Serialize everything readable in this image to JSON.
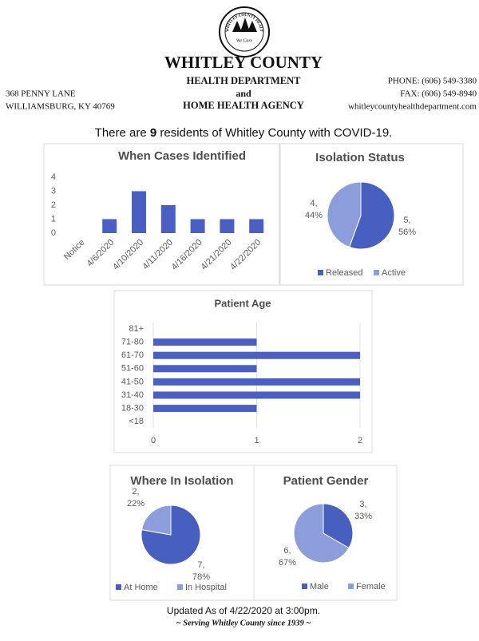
{
  "header": {
    "logo_ring": "WHITLEY COUNTY HEALTH DEPARTMENT",
    "logo_text": "We Care",
    "title": "WHITLEY COUNTY",
    "line1": "HEALTH DEPARTMENT",
    "line2": "and",
    "line3": "HOME HEALTH AGENCY",
    "address1": "368 PENNY LANE",
    "address2": "WILLIAMSBURG, KY 40769",
    "phone": "PHONE: (606) 549-3380",
    "fax": "FAX: (606) 549-8940",
    "website": "whitleycountyhealthdepartment.com"
  },
  "intro": {
    "prefix": "There are",
    "count": 9,
    "suffix": "residents of Whitley County with COVID-19."
  },
  "chart_data": [
    {
      "type": "bar",
      "title": "When Cases Identified",
      "categories": [
        "Notice",
        "4/6/2020",
        "4/10/2020",
        "4/11/2020",
        "4/16/2020",
        "4/21/2020",
        "4/22/2020"
      ],
      "values": [
        0,
        1,
        3,
        2,
        1,
        1,
        1
      ],
      "color": "#4a5fc1",
      "ylim": [
        0,
        4
      ],
      "yticks": [
        0,
        1,
        2,
        3,
        4
      ],
      "grid": false
    },
    {
      "type": "pie",
      "title": "Isolation Status",
      "categories": [
        "Released",
        "Active"
      ],
      "values": [
        5,
        4
      ],
      "value_labels": [
        [
          "5,",
          "56%"
        ],
        [
          "4,",
          "44%"
        ]
      ],
      "colors": [
        "#4760bf",
        "#8c9ddb"
      ],
      "legend": "bottom"
    },
    {
      "type": "bar",
      "orientation": "horizontal",
      "title": "Patient Age",
      "categories": [
        "<18",
        "18-30",
        "31-40",
        "41-50",
        "51-60",
        "61-70",
        "71-80",
        "81+"
      ],
      "values": [
        0,
        1,
        2,
        2,
        1,
        2,
        1,
        0
      ],
      "color": "#4a5fc1",
      "xlim": [
        0,
        2
      ],
      "xticks": [
        0,
        1,
        2
      ],
      "grid": true
    },
    {
      "type": "pie",
      "title": "Where In Isolation",
      "categories": [
        "At Home",
        "In Hospital"
      ],
      "values": [
        7,
        2
      ],
      "value_labels": [
        [
          "7,",
          "78%"
        ],
        [
          "2,",
          "22%"
        ]
      ],
      "colors": [
        "#4760bf",
        "#8c9ddb"
      ],
      "legend": "bottom"
    },
    {
      "type": "pie",
      "title": "Patient Gender",
      "categories": [
        "Male",
        "Female"
      ],
      "values": [
        3,
        6
      ],
      "value_labels": [
        [
          "3,",
          "33%"
        ],
        [
          "6,",
          "67%"
        ]
      ],
      "colors": [
        "#4760bf",
        "#8c9ddb"
      ],
      "legend": "bottom"
    }
  ],
  "footer": {
    "updated": "Updated As of 4/22/2020 at 3:00pm.",
    "motto": "~ Serving Whitley County since 1939 ~"
  }
}
